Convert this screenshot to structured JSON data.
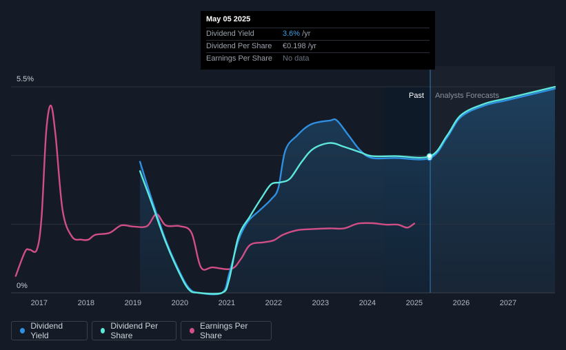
{
  "colors": {
    "background": "#151b26",
    "dividend_yield": "#2f8fe0",
    "dividend_per_share": "#5ee8dc",
    "earnings_per_share": "#d14f86"
  },
  "tooltip": {
    "date": "May 05 2025",
    "rows": [
      {
        "label": "Dividend Yield",
        "value_highlight": "3.6%",
        "value_rest": " /yr"
      },
      {
        "label": "Dividend Per Share",
        "value_highlight": "€0.198",
        "value_rest": " /yr"
      },
      {
        "label": "Earnings Per Share",
        "value_nodata": "No data"
      }
    ]
  },
  "legend": {
    "items": [
      {
        "label": "Dividend Yield",
        "color": "#2f8fe0"
      },
      {
        "label": "Dividend Per Share",
        "color": "#5ee8dc"
      },
      {
        "label": "Earnings Per Share",
        "color": "#d14f86"
      }
    ]
  },
  "chart_data": {
    "type": "line",
    "y_top_label": "5.5%",
    "y_bottom_label": "0%",
    "ylim": [
      0,
      5.5
    ],
    "xlim": [
      2016.4,
      2028.0
    ],
    "x_ticks": [
      "2017",
      "2018",
      "2019",
      "2020",
      "2021",
      "2022",
      "2023",
      "2024",
      "2025",
      "2026",
      "2027"
    ],
    "past_label": "Past",
    "forecast_label": "Analysts Forecasts",
    "forecast_start": 2025.34,
    "past_shade_start": 2024.35,
    "grid": true,
    "series": [
      {
        "name": "Dividend Yield",
        "points": [
          [
            2019.15,
            3.5
          ],
          [
            2019.4,
            2.5
          ],
          [
            2019.7,
            1.4
          ],
          [
            2020.0,
            0.55
          ],
          [
            2020.2,
            0.12
          ],
          [
            2020.4,
            0.0
          ],
          [
            2020.9,
            0.0
          ],
          [
            2021.05,
            0.5
          ],
          [
            2021.25,
            1.4
          ],
          [
            2021.45,
            1.9
          ],
          [
            2021.7,
            2.2
          ],
          [
            2021.95,
            2.5
          ],
          [
            2022.1,
            2.8
          ],
          [
            2022.25,
            3.8
          ],
          [
            2022.5,
            4.2
          ],
          [
            2022.8,
            4.5
          ],
          [
            2023.2,
            4.6
          ],
          [
            2023.35,
            4.6
          ],
          [
            2023.6,
            4.2
          ],
          [
            2023.85,
            3.8
          ],
          [
            2024.1,
            3.6
          ],
          [
            2024.6,
            3.6
          ],
          [
            2025.34,
            3.6
          ],
          [
            2025.7,
            4.15
          ],
          [
            2026.0,
            4.7
          ],
          [
            2026.5,
            5.0
          ],
          [
            2027.0,
            5.15
          ],
          [
            2028.0,
            5.45
          ]
        ]
      },
      {
        "name": "Dividend Per Share",
        "points": [
          [
            2019.15,
            3.25
          ],
          [
            2019.4,
            2.4
          ],
          [
            2019.7,
            1.35
          ],
          [
            2020.0,
            0.5
          ],
          [
            2020.2,
            0.08
          ],
          [
            2020.4,
            0.0
          ],
          [
            2020.9,
            0.0
          ],
          [
            2021.05,
            0.35
          ],
          [
            2021.25,
            1.5
          ],
          [
            2021.5,
            2.05
          ],
          [
            2021.75,
            2.55
          ],
          [
            2021.95,
            2.9
          ],
          [
            2022.15,
            2.95
          ],
          [
            2022.35,
            3.05
          ],
          [
            2022.6,
            3.5
          ],
          [
            2022.85,
            3.85
          ],
          [
            2023.2,
            4.0
          ],
          [
            2023.5,
            3.9
          ],
          [
            2023.85,
            3.75
          ],
          [
            2024.1,
            3.65
          ],
          [
            2024.6,
            3.65
          ],
          [
            2025.34,
            3.65
          ],
          [
            2025.7,
            4.2
          ],
          [
            2026.0,
            4.75
          ],
          [
            2026.5,
            5.05
          ],
          [
            2027.0,
            5.2
          ],
          [
            2028.0,
            5.5
          ]
        ]
      },
      {
        "name": "Earnings Per Share",
        "points": [
          [
            2016.5,
            0.45
          ],
          [
            2016.7,
            1.1
          ],
          [
            2016.8,
            1.15
          ],
          [
            2016.95,
            1.15
          ],
          [
            2017.05,
            2.0
          ],
          [
            2017.15,
            4.3
          ],
          [
            2017.25,
            5.0
          ],
          [
            2017.35,
            4.2
          ],
          [
            2017.5,
            2.2
          ],
          [
            2017.7,
            1.5
          ],
          [
            2017.9,
            1.42
          ],
          [
            2018.05,
            1.42
          ],
          [
            2018.2,
            1.55
          ],
          [
            2018.5,
            1.6
          ],
          [
            2018.75,
            1.8
          ],
          [
            2019.0,
            1.77
          ],
          [
            2019.3,
            1.78
          ],
          [
            2019.5,
            2.1
          ],
          [
            2019.7,
            1.8
          ],
          [
            2020.0,
            1.78
          ],
          [
            2020.25,
            1.6
          ],
          [
            2020.45,
            0.68
          ],
          [
            2020.7,
            0.68
          ],
          [
            2021.1,
            0.64
          ],
          [
            2021.3,
            0.9
          ],
          [
            2021.5,
            1.28
          ],
          [
            2021.8,
            1.35
          ],
          [
            2022.0,
            1.4
          ],
          [
            2022.2,
            1.55
          ],
          [
            2022.5,
            1.67
          ],
          [
            2022.8,
            1.7
          ],
          [
            2023.2,
            1.72
          ],
          [
            2023.5,
            1.72
          ],
          [
            2023.8,
            1.85
          ],
          [
            2024.1,
            1.86
          ],
          [
            2024.4,
            1.82
          ],
          [
            2024.65,
            1.82
          ],
          [
            2024.85,
            1.74
          ],
          [
            2025.0,
            1.85
          ]
        ]
      }
    ]
  }
}
